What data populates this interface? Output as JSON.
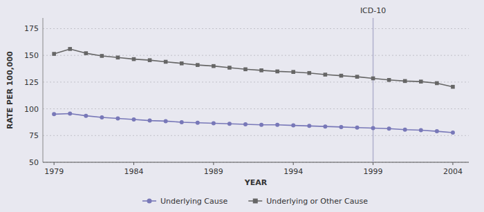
{
  "chart_data": {
    "type": "line",
    "x_label": "YEAR",
    "y_label": "RATE PER 100,000",
    "x": [
      1979,
      1980,
      1981,
      1982,
      1983,
      1984,
      1985,
      1986,
      1987,
      1988,
      1989,
      1990,
      1991,
      1992,
      1993,
      1994,
      1995,
      1996,
      1997,
      1998,
      1999,
      2000,
      2001,
      2002,
      2003,
      2004
    ],
    "series": [
      {
        "name": "Underlying Cause",
        "color": "#7878b8",
        "marker": "circle",
        "values": [
          95.0,
          95.5,
          93.5,
          92.0,
          91.0,
          90.0,
          89.0,
          88.5,
          87.5,
          87.0,
          86.5,
          86.0,
          85.5,
          85.0,
          85.0,
          84.5,
          84.0,
          83.5,
          83.0,
          82.5,
          82.0,
          81.5,
          80.5,
          80.0,
          79.0,
          77.8
        ]
      },
      {
        "name": "Underlying or Other Cause",
        "color": "#666666",
        "marker": "square",
        "values": [
          151.4,
          156.0,
          152.0,
          149.5,
          148.0,
          146.5,
          145.5,
          144.0,
          142.5,
          141.0,
          140.0,
          138.5,
          137.0,
          136.0,
          135.0,
          134.5,
          133.5,
          132.0,
          131.0,
          130.0,
          128.5,
          127.0,
          126.0,
          125.5,
          124.0,
          120.6
        ]
      }
    ],
    "annotations": [
      {
        "x": 1999,
        "text": "ICD-10",
        "color": "#b0b0cc"
      }
    ],
    "xlim": [
      1978.3,
      2005.0
    ],
    "xticks": [
      1979,
      1984,
      1989,
      1994,
      1999,
      2004
    ],
    "ylim": [
      50,
      185
    ],
    "yticks": [
      50,
      75,
      100,
      125,
      150,
      175
    ],
    "grid": true,
    "legend": "bottom"
  }
}
